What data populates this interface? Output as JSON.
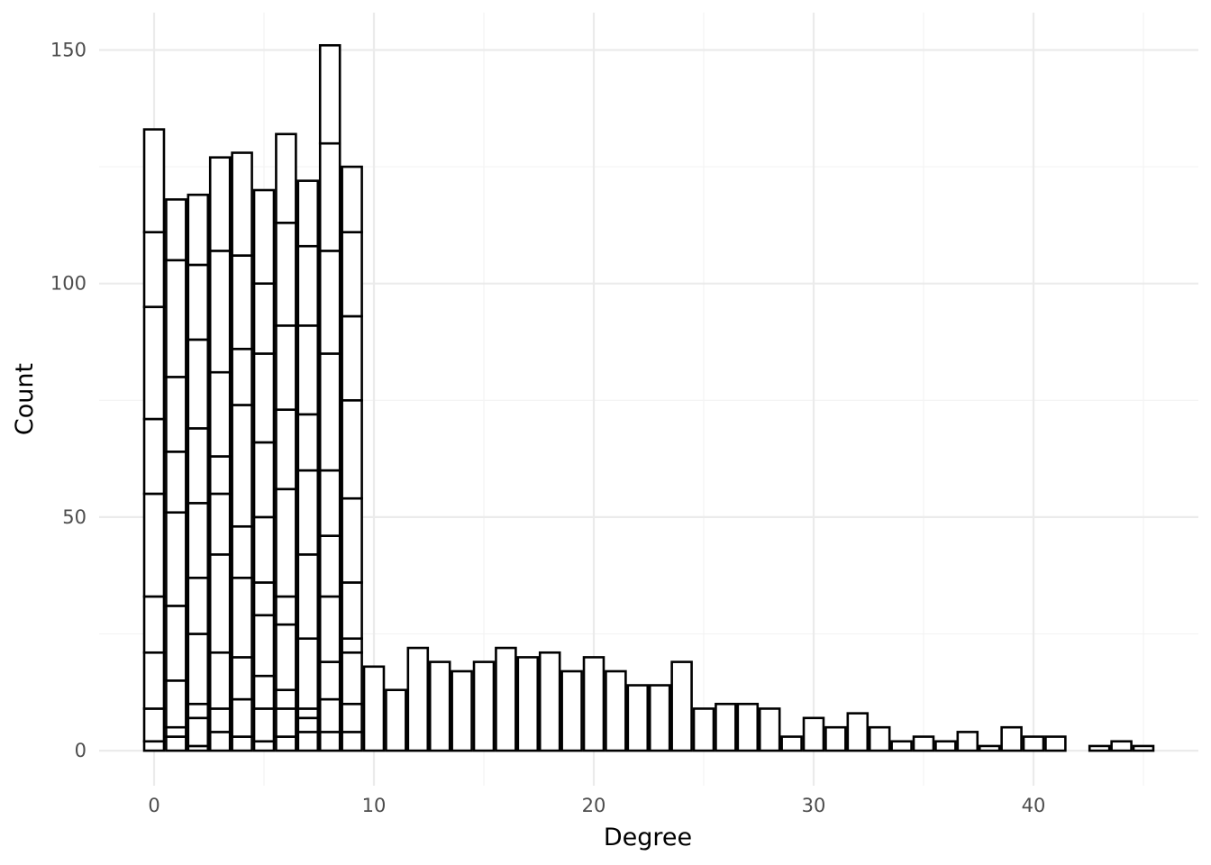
{
  "chart_data": {
    "type": "bar",
    "subtype": "stacked-histogram",
    "title": "",
    "xlabel": "Degree",
    "ylabel": "Count",
    "xlim": [
      -2.5,
      47.5
    ],
    "ylim": [
      -7.5,
      158
    ],
    "x_ticks": [
      0,
      10,
      20,
      30,
      40
    ],
    "y_ticks": [
      0,
      50,
      100,
      150
    ],
    "grid": true,
    "legend": "none",
    "bar_fill": "#ffffff",
    "bar_outline": "#000000",
    "bars": [
      {
        "x": 0,
        "stack": [
          2,
          9,
          21,
          33,
          55,
          71,
          95,
          111,
          133
        ]
      },
      {
        "x": 1,
        "stack": [
          3,
          5,
          15,
          31,
          51,
          64,
          80,
          105,
          118
        ]
      },
      {
        "x": 2,
        "stack": [
          1,
          7,
          10,
          25,
          37,
          53,
          69,
          88,
          104,
          119
        ]
      },
      {
        "x": 3,
        "stack": [
          4,
          9,
          21,
          42,
          55,
          63,
          81,
          107,
          127
        ]
      },
      {
        "x": 4,
        "stack": [
          3,
          11,
          20,
          37,
          48,
          74,
          86,
          106,
          128
        ]
      },
      {
        "x": 5,
        "stack": [
          2,
          9,
          16,
          29,
          36,
          50,
          66,
          85,
          100,
          120
        ]
      },
      {
        "x": 6,
        "stack": [
          3,
          9,
          13,
          27,
          33,
          56,
          73,
          91,
          113,
          132
        ]
      },
      {
        "x": 7,
        "stack": [
          4,
          7,
          9,
          24,
          42,
          60,
          72,
          91,
          108,
          122
        ]
      },
      {
        "x": 8,
        "stack": [
          4,
          11,
          19,
          33,
          46,
          60,
          85,
          107,
          130,
          151
        ]
      },
      {
        "x": 9,
        "stack": [
          4,
          10,
          21,
          24,
          36,
          54,
          75,
          93,
          111,
          125
        ]
      },
      {
        "x": 10,
        "stack": [
          18
        ]
      },
      {
        "x": 11,
        "stack": [
          13
        ]
      },
      {
        "x": 12,
        "stack": [
          22
        ]
      },
      {
        "x": 13,
        "stack": [
          19
        ]
      },
      {
        "x": 14,
        "stack": [
          17
        ]
      },
      {
        "x": 15,
        "stack": [
          19
        ]
      },
      {
        "x": 16,
        "stack": [
          22
        ]
      },
      {
        "x": 17,
        "stack": [
          20
        ]
      },
      {
        "x": 18,
        "stack": [
          21
        ]
      },
      {
        "x": 19,
        "stack": [
          17
        ]
      },
      {
        "x": 20,
        "stack": [
          20
        ]
      },
      {
        "x": 21,
        "stack": [
          17
        ]
      },
      {
        "x": 22,
        "stack": [
          14
        ]
      },
      {
        "x": 23,
        "stack": [
          14
        ]
      },
      {
        "x": 24,
        "stack": [
          19
        ]
      },
      {
        "x": 25,
        "stack": [
          9
        ]
      },
      {
        "x": 26,
        "stack": [
          10
        ]
      },
      {
        "x": 27,
        "stack": [
          10
        ]
      },
      {
        "x": 28,
        "stack": [
          9
        ]
      },
      {
        "x": 29,
        "stack": [
          3
        ]
      },
      {
        "x": 30,
        "stack": [
          7
        ]
      },
      {
        "x": 31,
        "stack": [
          5
        ]
      },
      {
        "x": 32,
        "stack": [
          8
        ]
      },
      {
        "x": 33,
        "stack": [
          5
        ]
      },
      {
        "x": 34,
        "stack": [
          2
        ]
      },
      {
        "x": 35,
        "stack": [
          3
        ]
      },
      {
        "x": 36,
        "stack": [
          2
        ]
      },
      {
        "x": 37,
        "stack": [
          4
        ]
      },
      {
        "x": 38,
        "stack": [
          1
        ]
      },
      {
        "x": 39,
        "stack": [
          5
        ]
      },
      {
        "x": 40,
        "stack": [
          3
        ]
      },
      {
        "x": 41,
        "stack": [
          3
        ]
      },
      {
        "x": 42,
        "stack": [
          0
        ]
      },
      {
        "x": 43,
        "stack": [
          1
        ]
      },
      {
        "x": 44,
        "stack": [
          2
        ]
      },
      {
        "x": 45,
        "stack": [
          1
        ]
      }
    ]
  }
}
